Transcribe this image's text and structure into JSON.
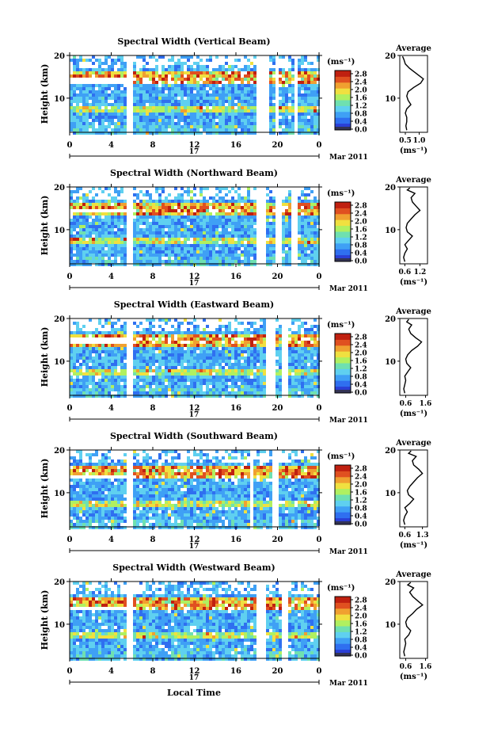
{
  "figure": {
    "xlabel": "Local Time",
    "date_label": "Mar 2011",
    "day_label": "17",
    "units_label": "(ms⁻¹)",
    "avg_xlabel": "(ms⁻¹)",
    "avg_title": "Average",
    "ylabel": "Height (km)",
    "colorbar_ticks": [
      "2.8",
      "2.4",
      "2.0",
      "1.6",
      "1.2",
      "0.8",
      "0.4",
      "0.0"
    ],
    "colormap": [
      "#2a3fd6",
      "#2f6ff0",
      "#3fa0f5",
      "#5fd0f0",
      "#6fe0b0",
      "#b0f060",
      "#f0e040",
      "#f0a030",
      "#e05020",
      "#c02010"
    ]
  },
  "chart_data": [
    {
      "type": "heatmap",
      "title": "Spectral Width (Vertical Beam)",
      "xlabel": "Local Time",
      "ylabel": "Height (km)",
      "x_ticks": [
        "0",
        "4",
        "8",
        "12",
        "16",
        "20",
        "0"
      ],
      "xlim": [
        0,
        24
      ],
      "y_ticks": [
        "20",
        "10"
      ],
      "ylim": [
        2,
        20
      ],
      "colorbar_range": [
        0.0,
        2.8
      ],
      "gaps_hours": [
        [
          5.2,
          5.9
        ],
        [
          17.8,
          18.9
        ],
        [
          19.7,
          20.1
        ],
        [
          21.4,
          21.7
        ]
      ],
      "gap_band_km": [
        13.6,
        15.0
      ],
      "average_profile": {
        "title": "Average",
        "xlabel": "(ms⁻¹)",
        "x_ticks": [
          "0.5",
          "1.0"
        ],
        "xlim": [
          0.3,
          1.3
        ],
        "y_ticks": [
          "20",
          "10"
        ],
        "height_km": [
          2.5,
          3.5,
          4.5,
          5.5,
          6.5,
          7.5,
          8.5,
          9.5,
          10.5,
          11.5,
          12.5,
          13.5,
          14.5,
          15.0,
          16.0,
          17.0,
          18.0,
          19.0,
          19.8
        ],
        "width": [
          0.55,
          0.52,
          0.55,
          0.55,
          0.5,
          0.55,
          0.7,
          0.6,
          0.55,
          0.6,
          0.8,
          1.05,
          1.15,
          1.05,
          0.85,
          0.65,
          0.5,
          0.45,
          0.4
        ]
      }
    },
    {
      "type": "heatmap",
      "title": "Spectral Width (Northward Beam)",
      "xlabel": "Local Time",
      "ylabel": "Height (km)",
      "x_ticks": [
        "0",
        "4",
        "8",
        "12",
        "16",
        "20",
        "0"
      ],
      "xlim": [
        0,
        24
      ],
      "y_ticks": [
        "20",
        "10"
      ],
      "ylim": [
        2,
        20
      ],
      "colorbar_range": [
        0.0,
        2.8
      ],
      "gaps_hours": [
        [
          5.2,
          5.8
        ],
        [
          17.8,
          18.8
        ],
        [
          19.6,
          20.2
        ],
        [
          21.3,
          21.8
        ]
      ],
      "gap_band_km": [
        14.5,
        15.5
      ],
      "average_profile": {
        "title": "Average",
        "xlabel": "(ms⁻¹)",
        "x_ticks": [
          "0.6",
          "1.2"
        ],
        "xlim": [
          0.4,
          1.5
        ],
        "y_ticks": [
          "20",
          "10"
        ],
        "height_km": [
          2.5,
          3.5,
          4.5,
          5.5,
          6.5,
          7.5,
          8.5,
          9.5,
          10.5,
          11.5,
          12.5,
          13.5,
          14.5,
          15.5,
          16.5,
          17.5,
          18.5,
          19.3,
          19.8
        ],
        "width": [
          0.6,
          0.55,
          0.6,
          0.7,
          0.6,
          0.75,
          0.9,
          0.7,
          0.65,
          0.7,
          0.85,
          1.0,
          1.2,
          1.05,
          0.9,
          0.85,
          1.0,
          0.7,
          0.8
        ]
      }
    },
    {
      "type": "heatmap",
      "title": "Spectral Width (Eastward Beam)",
      "xlabel": "Local Time",
      "ylabel": "Height (km)",
      "x_ticks": [
        "0",
        "4",
        "8",
        "12",
        "16",
        "20",
        "0"
      ],
      "xlim": [
        0,
        24
      ],
      "y_ticks": [
        "20",
        "10"
      ],
      "ylim": [
        2,
        20
      ],
      "colorbar_range": [
        0.0,
        2.8
      ],
      "gaps_hours": [
        [
          5.2,
          5.8
        ],
        [
          18.8,
          19.7
        ],
        [
          20.4,
          20.9
        ]
      ],
      "gap_band_km": [
        14.8,
        15.8
      ],
      "average_profile": {
        "title": "Average",
        "xlabel": "(ms⁻¹)",
        "x_ticks": [
          "0.6",
          "1.6"
        ],
        "xlim": [
          0.3,
          1.7
        ],
        "y_ticks": [
          "20",
          "10"
        ],
        "height_km": [
          2.5,
          3.5,
          4.5,
          5.5,
          6.5,
          7.5,
          8.5,
          9.5,
          10.5,
          11.5,
          12.5,
          13.5,
          14.5,
          15.5,
          16.5,
          17.5,
          18.5,
          19.2,
          19.8
        ],
        "width": [
          0.55,
          0.5,
          0.55,
          0.6,
          0.55,
          0.7,
          0.85,
          0.65,
          0.6,
          0.7,
          0.9,
          1.2,
          1.4,
          1.1,
          0.85,
          0.75,
          0.9,
          0.65,
          0.75
        ]
      }
    },
    {
      "type": "heatmap",
      "title": "Spectral Width (Southward Beam)",
      "xlabel": "Local Time",
      "ylabel": "Height (km)",
      "x_ticks": [
        "0",
        "4",
        "8",
        "12",
        "16",
        "20",
        "0"
      ],
      "xlim": [
        0,
        24
      ],
      "y_ticks": [
        "20",
        "10"
      ],
      "ylim": [
        2,
        20
      ],
      "colorbar_range": [
        0.0,
        2.8
      ],
      "gaps_hours": [
        [
          5.2,
          5.8
        ],
        [
          17.2,
          17.6
        ],
        [
          19.5,
          20.0
        ]
      ],
      "gap_band_km": [
        13.4,
        14.4
      ],
      "average_profile": {
        "title": "Average",
        "xlabel": "(ms⁻¹)",
        "x_ticks": [
          "0.6",
          "1.3"
        ],
        "xlim": [
          0.4,
          1.5
        ],
        "y_ticks": [
          "20",
          "10"
        ],
        "height_km": [
          2.5,
          3.5,
          4.5,
          5.5,
          6.5,
          7.5,
          8.5,
          9.5,
          10.5,
          11.5,
          12.5,
          13.5,
          14.5,
          15.5,
          16.5,
          17.5,
          18.5,
          19.2,
          19.8
        ],
        "width": [
          0.6,
          0.55,
          0.6,
          0.7,
          0.6,
          0.8,
          0.95,
          0.75,
          0.7,
          0.8,
          0.95,
          1.1,
          1.3,
          1.15,
          0.95,
          0.9,
          1.05,
          0.75,
          0.85
        ]
      }
    },
    {
      "type": "heatmap",
      "title": "Spectral Width (Westward Beam)",
      "xlabel": "Local Time",
      "ylabel": "Height (km)",
      "x_ticks": [
        "0",
        "4",
        "8",
        "12",
        "16",
        "20",
        "0"
      ],
      "xlim": [
        0,
        24
      ],
      "y_ticks": [
        "20",
        "10"
      ],
      "ylim": [
        2,
        20
      ],
      "colorbar_range": [
        0.0,
        2.8
      ],
      "gaps_hours": [
        [
          5.2,
          5.8
        ],
        [
          17.8,
          18.7
        ],
        [
          20.3,
          20.8
        ]
      ],
      "gap_band_km": [
        13.4,
        14.6
      ],
      "average_profile": {
        "title": "Average",
        "xlabel": "(ms⁻¹)",
        "x_ticks": [
          "0.6",
          "1.6"
        ],
        "xlim": [
          0.3,
          1.7
        ],
        "y_ticks": [
          "20",
          "10"
        ],
        "height_km": [
          2.5,
          3.5,
          4.5,
          5.5,
          6.5,
          7.5,
          8.5,
          9.5,
          10.5,
          11.5,
          12.5,
          13.5,
          14.5,
          15.5,
          16.5,
          17.5,
          18.5,
          19.2,
          19.8
        ],
        "width": [
          0.55,
          0.5,
          0.55,
          0.6,
          0.55,
          0.75,
          0.85,
          0.65,
          0.6,
          0.7,
          0.95,
          1.15,
          1.45,
          1.2,
          0.95,
          0.8,
          1.0,
          0.7,
          0.85
        ]
      }
    }
  ]
}
